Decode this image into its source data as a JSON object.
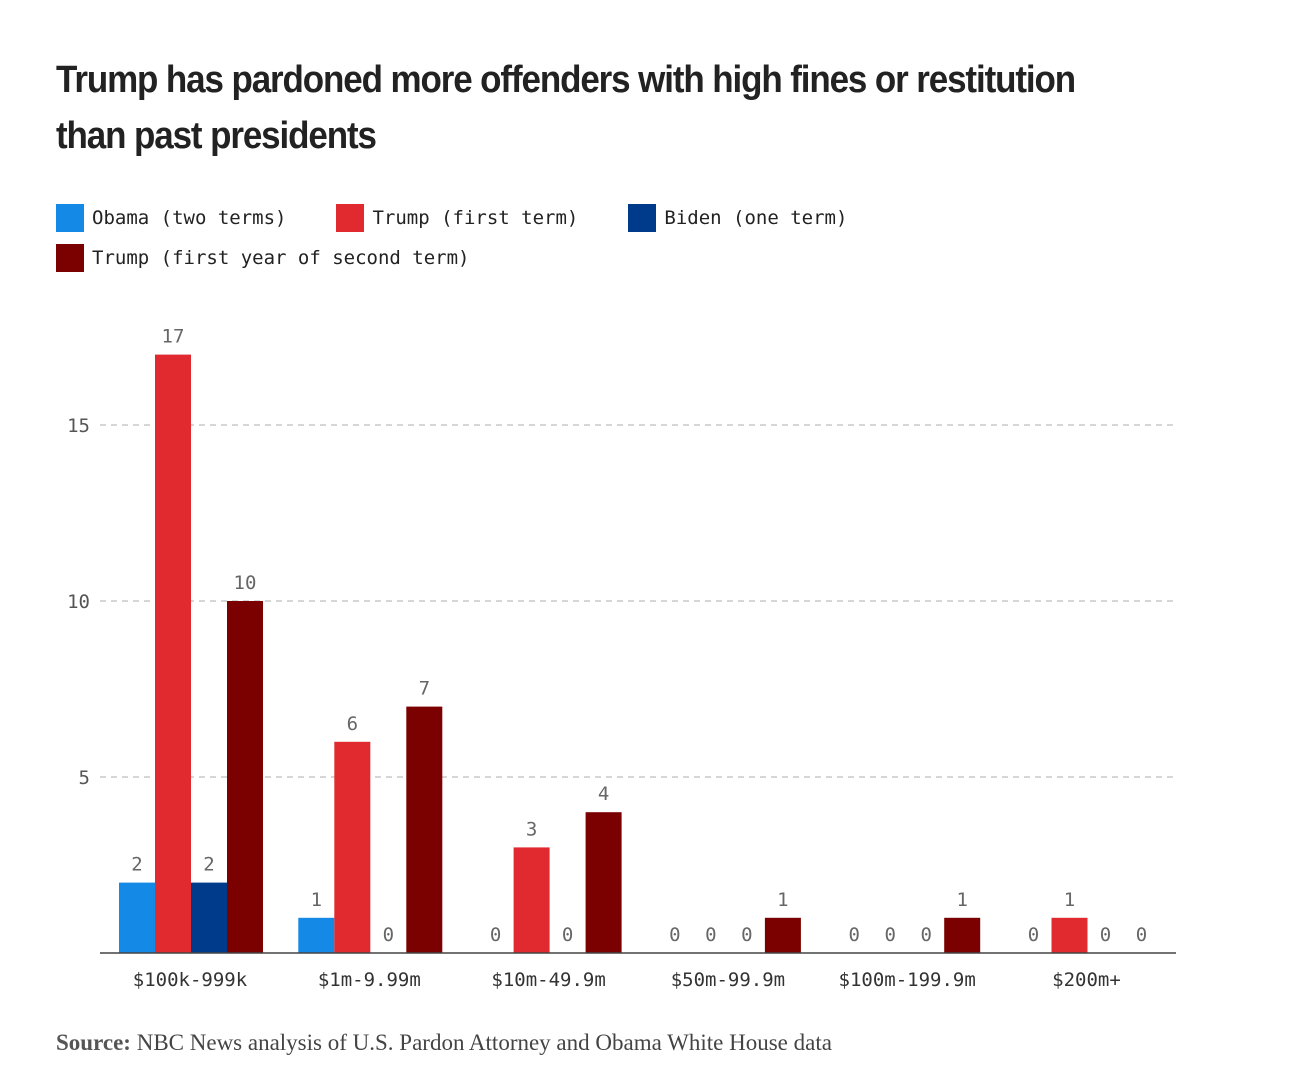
{
  "title": "Trump has pardoned more offenders with high fines or restitution than past presidents",
  "source_label": "Source:",
  "source_text": "NBC News analysis of U.S. Pardon Attorney and Obama White House data",
  "chart_data": {
    "type": "bar",
    "categories": [
      "$100k-999k",
      "$1m-9.99m",
      "$10m-49.9m",
      "$50m-99.9m",
      "$100m-199.9m",
      "$200m+"
    ],
    "series": [
      {
        "name": "Obama (two terms)",
        "color": "#1589e6",
        "values": [
          2,
          1,
          0,
          0,
          0,
          0
        ]
      },
      {
        "name": "Trump (first term)",
        "color": "#e02a2f",
        "values": [
          17,
          6,
          3,
          0,
          0,
          1
        ]
      },
      {
        "name": "Biden (one term)",
        "color": "#003a8a",
        "values": [
          2,
          0,
          0,
          0,
          0,
          0
        ]
      },
      {
        "name": "Trump (first year of second term)",
        "color": "#7b0000",
        "values": [
          10,
          7,
          4,
          1,
          1,
          0
        ]
      }
    ],
    "yticks": [
      5,
      10,
      15
    ],
    "ylim": [
      0,
      17.8
    ],
    "grid": true,
    "legend": "top-left",
    "data_labels": true
  }
}
